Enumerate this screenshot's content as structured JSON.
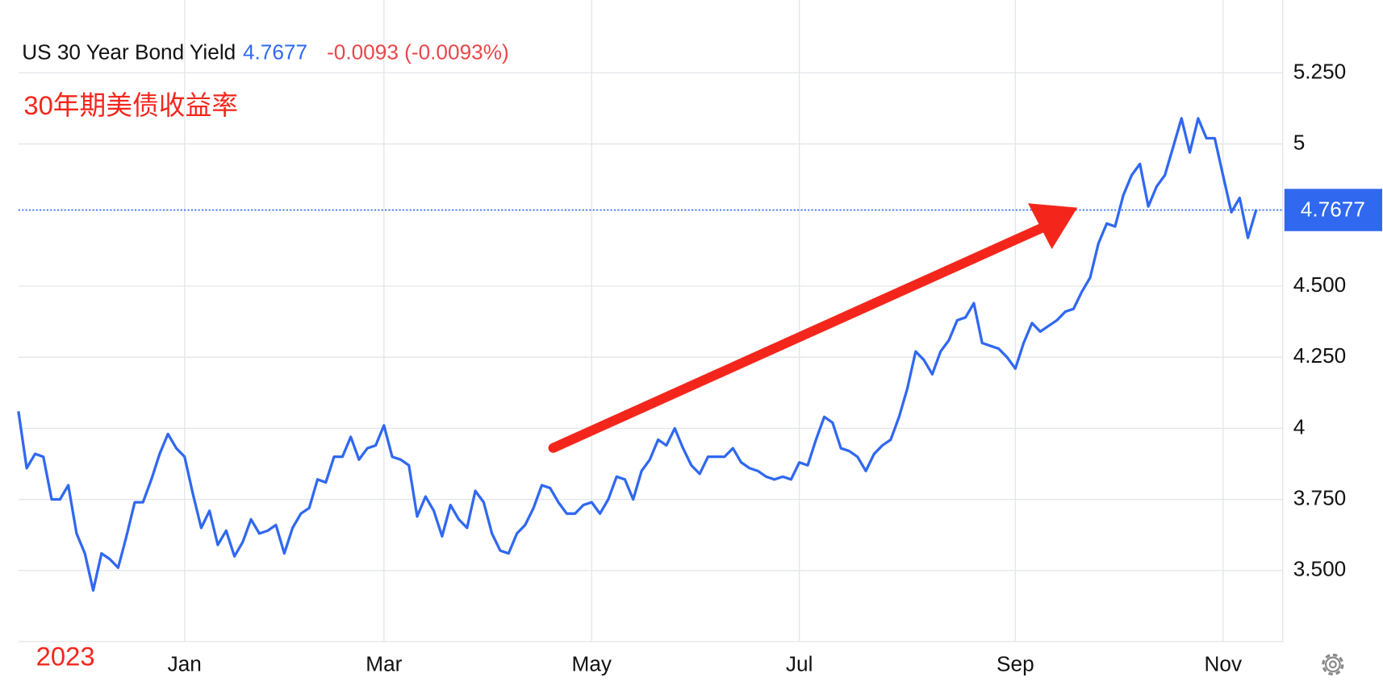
{
  "header": {
    "title": "US 30 Year Bond Yield",
    "change": "-0.0093 (-0.0093%)"
  },
  "annotations": {
    "label": "30年期美债收益率",
    "year": "2023"
  },
  "chart_data": {
    "type": "line",
    "categories": [
      null,
      null,
      null,
      null,
      null,
      null,
      null,
      null,
      null,
      null,
      null,
      null,
      null,
      null,
      null,
      null,
      null,
      null,
      null,
      null,
      "Jan",
      null,
      null,
      null,
      null,
      null,
      null,
      null,
      null,
      null,
      null,
      null,
      null,
      null,
      null,
      null,
      null,
      null,
      null,
      null,
      null,
      null,
      null,
      null,
      "Mar",
      null,
      null,
      null,
      null,
      null,
      null,
      null,
      null,
      null,
      null,
      null,
      null,
      null,
      null,
      null,
      null,
      null,
      null,
      null,
      null,
      null,
      null,
      null,
      null,
      "May",
      null,
      null,
      null,
      null,
      null,
      null,
      null,
      null,
      null,
      null,
      null,
      null,
      null,
      null,
      null,
      null,
      null,
      null,
      null,
      null,
      null,
      null,
      null,
      null,
      "Jul",
      null,
      null,
      null,
      null,
      null,
      null,
      null,
      null,
      null,
      null,
      null,
      null,
      null,
      null,
      null,
      null,
      null,
      null,
      null,
      null,
      null,
      null,
      null,
      null,
      null,
      "Sep",
      null,
      null,
      null,
      null,
      null,
      null,
      null,
      null,
      null,
      null,
      null,
      null,
      null,
      null,
      null,
      null,
      null,
      null,
      null,
      null,
      null,
      null,
      null,
      null,
      "Nov",
      null,
      null,
      null,
      null
    ],
    "series": [
      {
        "name": "US 30 Year Bond Yield",
        "color": "#3068f0",
        "values": [
          4.06,
          3.86,
          3.91,
          3.9,
          3.75,
          3.75,
          3.8,
          3.63,
          3.56,
          3.43,
          3.56,
          3.54,
          3.51,
          3.62,
          3.74,
          3.74,
          3.82,
          3.91,
          3.98,
          3.93,
          3.9,
          3.77,
          3.65,
          3.71,
          3.59,
          3.64,
          3.55,
          3.6,
          3.68,
          3.63,
          3.64,
          3.66,
          3.56,
          3.65,
          3.7,
          3.72,
          3.82,
          3.81,
          3.9,
          3.9,
          3.97,
          3.89,
          3.93,
          3.94,
          4.01,
          3.9,
          3.89,
          3.87,
          3.69,
          3.76,
          3.71,
          3.62,
          3.73,
          3.68,
          3.65,
          3.78,
          3.74,
          3.63,
          3.57,
          3.56,
          3.63,
          3.66,
          3.72,
          3.8,
          3.79,
          3.74,
          3.7,
          3.7,
          3.73,
          3.74,
          3.7,
          3.75,
          3.83,
          3.82,
          3.75,
          3.85,
          3.89,
          3.96,
          3.94,
          4.0,
          3.93,
          3.87,
          3.84,
          3.9,
          3.9,
          3.9,
          3.93,
          3.88,
          3.86,
          3.85,
          3.83,
          3.82,
          3.83,
          3.82,
          3.88,
          3.87,
          3.96,
          4.04,
          4.02,
          3.93,
          3.92,
          3.9,
          3.85,
          3.91,
          3.94,
          3.96,
          4.04,
          4.14,
          4.27,
          4.24,
          4.19,
          4.27,
          4.31,
          4.38,
          4.39,
          4.44,
          4.3,
          4.29,
          4.28,
          4.25,
          4.21,
          4.3,
          4.37,
          4.34,
          4.36,
          4.38,
          4.41,
          4.42,
          4.48,
          4.53,
          4.65,
          4.72,
          4.71,
          4.82,
          4.89,
          4.93,
          4.78,
          4.85,
          4.89,
          4.99,
          5.09,
          4.97,
          5.09,
          5.02,
          5.02,
          4.89,
          4.76,
          4.81,
          4.67,
          4.77
        ]
      }
    ],
    "current_value": 4.7677,
    "ylim": [
      3.25,
      5.5
    ],
    "yticks": [
      {
        "value": 3.5,
        "label": "3.500"
      },
      {
        "value": 3.75,
        "label": "3.750"
      },
      4,
      {
        "value": 4.25,
        "label": "4.250"
      },
      {
        "value": 4.5,
        "label": "4.500"
      },
      5,
      {
        "value": 5.25,
        "label": "5.250"
      }
    ],
    "grid": true
  }
}
